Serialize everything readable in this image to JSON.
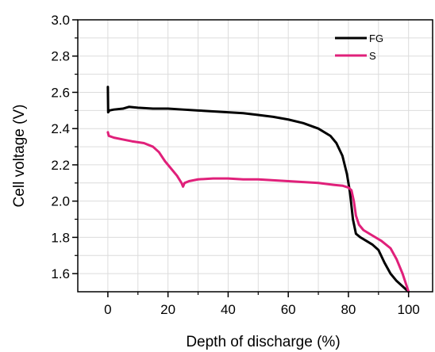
{
  "chart_data": {
    "type": "line",
    "title": "",
    "xlabel": "Depth of discharge (%)",
    "ylabel": "Cell voltage (V)",
    "xlim": [
      -10,
      108
    ],
    "ylim": [
      1.5,
      3.0
    ],
    "xticks": [
      0,
      20,
      40,
      60,
      80,
      100
    ],
    "yticks": [
      1.6,
      1.8,
      2.0,
      2.2,
      2.4,
      2.6,
      2.8,
      3.0
    ],
    "x_tick_labels": [
      "0",
      "20",
      "40",
      "60",
      "80",
      "100"
    ],
    "y_tick_labels": [
      "1.6",
      "1.8",
      "2.0",
      "2.2",
      "2.4",
      "2.6",
      "2.8",
      "3.0"
    ],
    "grid": true,
    "legend_position": "top-right",
    "series": [
      {
        "name": "FG",
        "color": "#000000",
        "points": [
          [
            0,
            2.63
          ],
          [
            0.1,
            2.49
          ],
          [
            0.5,
            2.5
          ],
          [
            2,
            2.505
          ],
          [
            5,
            2.51
          ],
          [
            7,
            2.52
          ],
          [
            10,
            2.515
          ],
          [
            15,
            2.51
          ],
          [
            20,
            2.51
          ],
          [
            25,
            2.505
          ],
          [
            30,
            2.5
          ],
          [
            35,
            2.495
          ],
          [
            40,
            2.49
          ],
          [
            45,
            2.485
          ],
          [
            50,
            2.475
          ],
          [
            55,
            2.465
          ],
          [
            60,
            2.45
          ],
          [
            65,
            2.43
          ],
          [
            70,
            2.4
          ],
          [
            74,
            2.36
          ],
          [
            76,
            2.32
          ],
          [
            78,
            2.25
          ],
          [
            79.5,
            2.15
          ],
          [
            80.5,
            2.05
          ],
          [
            81.5,
            1.9
          ],
          [
            82.5,
            1.82
          ],
          [
            84,
            1.8
          ],
          [
            86,
            1.78
          ],
          [
            88,
            1.76
          ],
          [
            90,
            1.73
          ],
          [
            92,
            1.66
          ],
          [
            94,
            1.6
          ],
          [
            96,
            1.56
          ],
          [
            98,
            1.53
          ],
          [
            100,
            1.5
          ]
        ]
      },
      {
        "name": "S",
        "color": "#e0207a",
        "points": [
          [
            0,
            2.38
          ],
          [
            0.3,
            2.36
          ],
          [
            2,
            2.35
          ],
          [
            5,
            2.34
          ],
          [
            8,
            2.33
          ],
          [
            12,
            2.32
          ],
          [
            15,
            2.3
          ],
          [
            17,
            2.27
          ],
          [
            19,
            2.22
          ],
          [
            21,
            2.18
          ],
          [
            23,
            2.14
          ],
          [
            24.5,
            2.1
          ],
          [
            25,
            2.08
          ],
          [
            25.5,
            2.1
          ],
          [
            27,
            2.11
          ],
          [
            30,
            2.12
          ],
          [
            35,
            2.125
          ],
          [
            40,
            2.125
          ],
          [
            45,
            2.12
          ],
          [
            50,
            2.12
          ],
          [
            55,
            2.115
          ],
          [
            60,
            2.11
          ],
          [
            65,
            2.105
          ],
          [
            70,
            2.1
          ],
          [
            75,
            2.09
          ],
          [
            78,
            2.085
          ],
          [
            80,
            2.075
          ],
          [
            81,
            2.06
          ],
          [
            81.8,
            2.0
          ],
          [
            82.5,
            1.92
          ],
          [
            83.5,
            1.87
          ],
          [
            85,
            1.84
          ],
          [
            88,
            1.81
          ],
          [
            91,
            1.78
          ],
          [
            94,
            1.74
          ],
          [
            96,
            1.68
          ],
          [
            98,
            1.6
          ],
          [
            100,
            1.5
          ]
        ]
      }
    ]
  }
}
